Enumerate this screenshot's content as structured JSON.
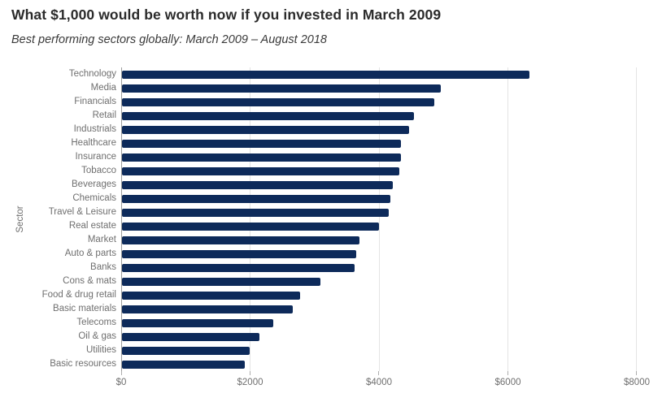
{
  "header": {
    "title": "What $1,000 would be worth now if you invested in March 2009",
    "subtitle": "Best performing sectors globally: March 2009 – August 2018"
  },
  "chart_data": {
    "type": "bar",
    "orientation": "horizontal",
    "title": "What $1,000 would be worth now if you invested in March 2009",
    "subtitle": "Best performing sectors globally: March 2009 – August 2018",
    "xlabel": "",
    "ylabel": "Sector",
    "categories": [
      "Technology",
      "Media",
      "Financials",
      "Retail",
      "Industrials",
      "Healthcare",
      "Insurance",
      "Tobacco",
      "Beverages",
      "Chemicals",
      "Travel & Leisure",
      "Real estate",
      "Market",
      "Auto & parts",
      "Banks",
      "Cons & mats",
      "Food & drug retail",
      "Basic materials",
      "Telecoms",
      "Oil & gas",
      "Utilities",
      "Basic resources"
    ],
    "values": [
      6330,
      4950,
      4850,
      4540,
      4460,
      4340,
      4330,
      4310,
      4210,
      4170,
      4140,
      3990,
      3690,
      3640,
      3610,
      3090,
      2770,
      2650,
      2350,
      2140,
      1990,
      1910
    ],
    "xlim": [
      0,
      8000
    ],
    "x_ticks": [
      0,
      2000,
      4000,
      6000,
      8000
    ],
    "x_tick_labels": [
      "$0",
      "$2000",
      "$4000",
      "$6000",
      "$8000"
    ],
    "grid": true,
    "legend": false,
    "bar_color": "#0d2a5a"
  },
  "colors": {
    "bar": "#0d2a5a",
    "title_text": "#2b2b2b",
    "subtitle_text": "#3a3a3a",
    "axis_text": "#6f6f6f",
    "gridline": "#e4e4e4",
    "axis_line": "#9c9c9c",
    "background": "#ffffff"
  }
}
